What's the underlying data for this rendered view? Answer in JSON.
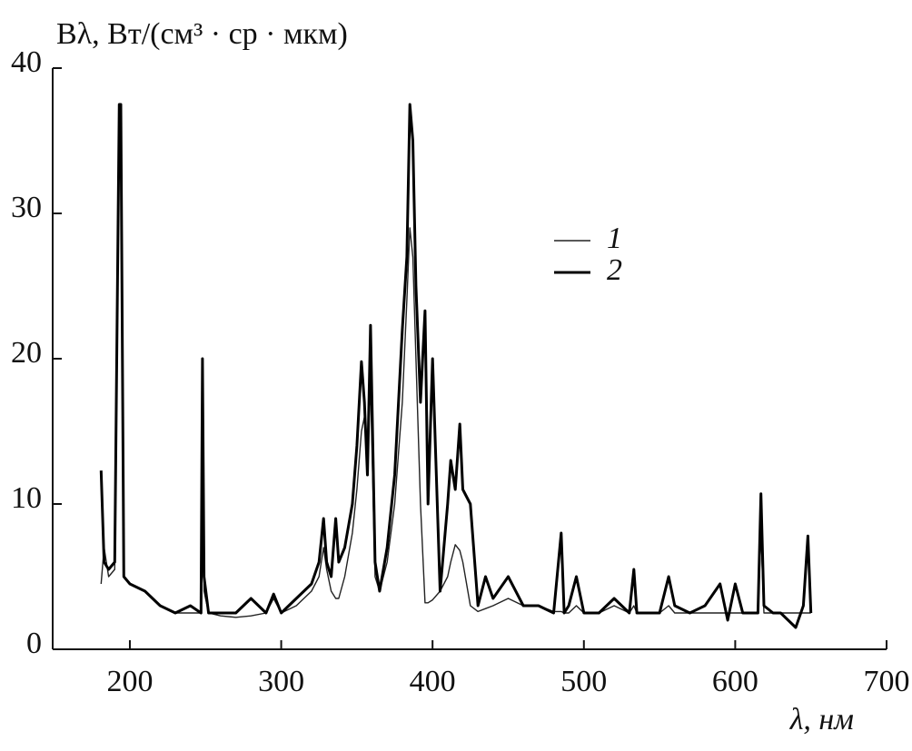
{
  "chart_data": {
    "type": "line",
    "y_label": "Bλ, Вт/(см³ · ср · мкм)",
    "x_label": "λ, нм",
    "xlim": [
      149,
      700
    ],
    "ylim": [
      0,
      40
    ],
    "xticks": [
      200,
      300,
      400,
      500,
      600,
      700
    ],
    "yticks": [
      0,
      10,
      20,
      30,
      40
    ],
    "x": [
      181,
      183,
      186,
      190,
      193,
      194,
      196,
      200,
      210,
      220,
      230,
      240,
      247,
      248,
      249,
      252,
      260,
      270,
      280,
      290,
      295,
      300,
      310,
      320,
      325,
      328,
      330,
      333,
      336,
      338,
      342,
      347,
      350,
      353,
      355,
      357,
      359,
      362,
      365,
      370,
      375,
      380,
      383,
      385,
      387,
      389,
      392,
      395,
      397,
      400,
      405,
      410,
      412,
      415,
      418,
      420,
      425,
      430,
      435,
      440,
      450,
      460,
      470,
      480,
      485,
      487,
      490,
      495,
      500,
      510,
      520,
      530,
      533,
      535,
      540,
      550,
      556,
      560,
      570,
      580,
      590,
      595,
      600,
      605,
      610,
      615,
      617,
      619,
      625,
      630,
      640,
      645,
      648,
      650
    ],
    "series": [
      {
        "name": "1",
        "color": "#222222",
        "values": [
          4.5,
          7,
          5,
          5.5,
          37,
          37,
          5,
          4.5,
          4,
          3,
          2.5,
          2.5,
          2.5,
          19,
          4,
          2.5,
          2.3,
          2.2,
          2.3,
          2.5,
          3.5,
          2.5,
          3,
          4,
          5,
          7,
          5.5,
          4,
          3.5,
          3.5,
          5,
          8,
          11,
          15,
          16,
          14,
          18,
          5,
          4,
          6,
          10,
          17,
          24,
          29,
          27,
          20,
          10,
          3.2,
          3.2,
          3.4,
          4,
          5,
          6,
          7.2,
          6.8,
          6,
          3,
          2.6,
          2.8,
          3,
          3.5,
          3,
          3,
          2.6,
          2.6,
          2.5,
          2.5,
          3,
          2.5,
          2.5,
          3,
          2.5,
          3,
          2.5,
          2.5,
          2.5,
          3,
          2.5,
          2.5,
          2.5,
          2.5,
          2.5,
          2.5,
          2.5,
          2.5,
          2.5,
          8,
          2.5,
          2.5,
          2.5,
          2.5,
          2.5,
          2.5,
          2.5
        ]
      },
      {
        "name": "2",
        "color": "#000000",
        "values": [
          12.3,
          6,
          5.5,
          6,
          37.5,
          37.5,
          5,
          4.5,
          4,
          3,
          2.5,
          3,
          2.5,
          20,
          5,
          2.5,
          2.5,
          2.5,
          3.5,
          2.5,
          3.8,
          2.5,
          3.5,
          4.5,
          6,
          9,
          6,
          5,
          9,
          6,
          7,
          10,
          14,
          19.8,
          17,
          12,
          22.3,
          6,
          4,
          7,
          12,
          22,
          27,
          37.5,
          35,
          25,
          17,
          23.3,
          10,
          20,
          4,
          10,
          13,
          11,
          15.5,
          11,
          10,
          3,
          5,
          3.5,
          5,
          3,
          3,
          2.5,
          8,
          2.5,
          3,
          5,
          2.5,
          2.5,
          3.5,
          2.5,
          5.5,
          2.5,
          2.5,
          2.5,
          5,
          3,
          2.5,
          3,
          4.5,
          2,
          4.5,
          2.5,
          2.5,
          2.5,
          10.7,
          3,
          2.5,
          2.5,
          1.5,
          3,
          7.8,
          2.5
        ]
      }
    ]
  }
}
